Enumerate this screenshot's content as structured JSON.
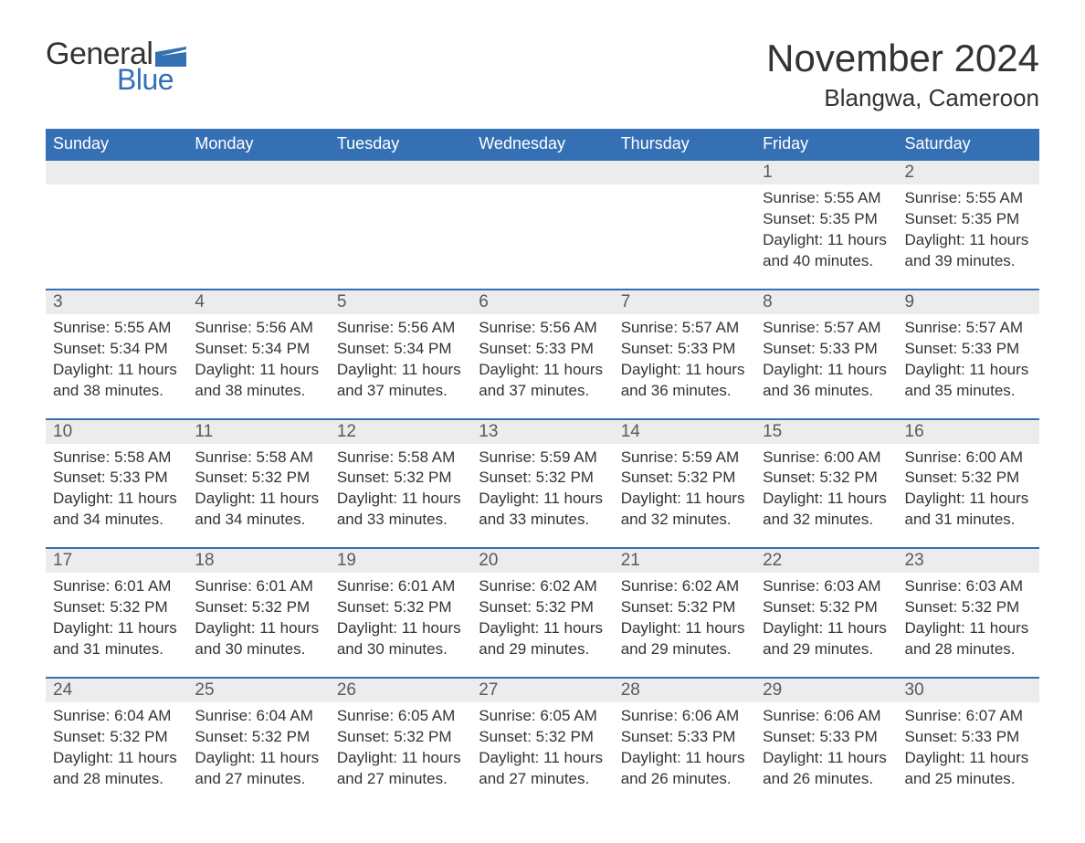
{
  "brand": {
    "word1": "General",
    "word2": "Blue",
    "accent_color": "#3570b4"
  },
  "title": "November 2024",
  "location": "Blangwa, Cameroon",
  "colors": {
    "header_bg": "#3570b4",
    "header_text": "#ffffff",
    "daynum_bg": "#ececec",
    "border": "#3570b4",
    "text": "#333333",
    "background": "#ffffff"
  },
  "day_headers": [
    "Sunday",
    "Monday",
    "Tuesday",
    "Wednesday",
    "Thursday",
    "Friday",
    "Saturday"
  ],
  "weeks": [
    [
      null,
      null,
      null,
      null,
      null,
      {
        "n": "1",
        "sr": "Sunrise: 5:55 AM",
        "ss": "Sunset: 5:35 PM",
        "d1": "Daylight: 11 hours",
        "d2": "and 40 minutes."
      },
      {
        "n": "2",
        "sr": "Sunrise: 5:55 AM",
        "ss": "Sunset: 5:35 PM",
        "d1": "Daylight: 11 hours",
        "d2": "and 39 minutes."
      }
    ],
    [
      {
        "n": "3",
        "sr": "Sunrise: 5:55 AM",
        "ss": "Sunset: 5:34 PM",
        "d1": "Daylight: 11 hours",
        "d2": "and 38 minutes."
      },
      {
        "n": "4",
        "sr": "Sunrise: 5:56 AM",
        "ss": "Sunset: 5:34 PM",
        "d1": "Daylight: 11 hours",
        "d2": "and 38 minutes."
      },
      {
        "n": "5",
        "sr": "Sunrise: 5:56 AM",
        "ss": "Sunset: 5:34 PM",
        "d1": "Daylight: 11 hours",
        "d2": "and 37 minutes."
      },
      {
        "n": "6",
        "sr": "Sunrise: 5:56 AM",
        "ss": "Sunset: 5:33 PM",
        "d1": "Daylight: 11 hours",
        "d2": "and 37 minutes."
      },
      {
        "n": "7",
        "sr": "Sunrise: 5:57 AM",
        "ss": "Sunset: 5:33 PM",
        "d1": "Daylight: 11 hours",
        "d2": "and 36 minutes."
      },
      {
        "n": "8",
        "sr": "Sunrise: 5:57 AM",
        "ss": "Sunset: 5:33 PM",
        "d1": "Daylight: 11 hours",
        "d2": "and 36 minutes."
      },
      {
        "n": "9",
        "sr": "Sunrise: 5:57 AM",
        "ss": "Sunset: 5:33 PM",
        "d1": "Daylight: 11 hours",
        "d2": "and 35 minutes."
      }
    ],
    [
      {
        "n": "10",
        "sr": "Sunrise: 5:58 AM",
        "ss": "Sunset: 5:33 PM",
        "d1": "Daylight: 11 hours",
        "d2": "and 34 minutes."
      },
      {
        "n": "11",
        "sr": "Sunrise: 5:58 AM",
        "ss": "Sunset: 5:32 PM",
        "d1": "Daylight: 11 hours",
        "d2": "and 34 minutes."
      },
      {
        "n": "12",
        "sr": "Sunrise: 5:58 AM",
        "ss": "Sunset: 5:32 PM",
        "d1": "Daylight: 11 hours",
        "d2": "and 33 minutes."
      },
      {
        "n": "13",
        "sr": "Sunrise: 5:59 AM",
        "ss": "Sunset: 5:32 PM",
        "d1": "Daylight: 11 hours",
        "d2": "and 33 minutes."
      },
      {
        "n": "14",
        "sr": "Sunrise: 5:59 AM",
        "ss": "Sunset: 5:32 PM",
        "d1": "Daylight: 11 hours",
        "d2": "and 32 minutes."
      },
      {
        "n": "15",
        "sr": "Sunrise: 6:00 AM",
        "ss": "Sunset: 5:32 PM",
        "d1": "Daylight: 11 hours",
        "d2": "and 32 minutes."
      },
      {
        "n": "16",
        "sr": "Sunrise: 6:00 AM",
        "ss": "Sunset: 5:32 PM",
        "d1": "Daylight: 11 hours",
        "d2": "and 31 minutes."
      }
    ],
    [
      {
        "n": "17",
        "sr": "Sunrise: 6:01 AM",
        "ss": "Sunset: 5:32 PM",
        "d1": "Daylight: 11 hours",
        "d2": "and 31 minutes."
      },
      {
        "n": "18",
        "sr": "Sunrise: 6:01 AM",
        "ss": "Sunset: 5:32 PM",
        "d1": "Daylight: 11 hours",
        "d2": "and 30 minutes."
      },
      {
        "n": "19",
        "sr": "Sunrise: 6:01 AM",
        "ss": "Sunset: 5:32 PM",
        "d1": "Daylight: 11 hours",
        "d2": "and 30 minutes."
      },
      {
        "n": "20",
        "sr": "Sunrise: 6:02 AM",
        "ss": "Sunset: 5:32 PM",
        "d1": "Daylight: 11 hours",
        "d2": "and 29 minutes."
      },
      {
        "n": "21",
        "sr": "Sunrise: 6:02 AM",
        "ss": "Sunset: 5:32 PM",
        "d1": "Daylight: 11 hours",
        "d2": "and 29 minutes."
      },
      {
        "n": "22",
        "sr": "Sunrise: 6:03 AM",
        "ss": "Sunset: 5:32 PM",
        "d1": "Daylight: 11 hours",
        "d2": "and 29 minutes."
      },
      {
        "n": "23",
        "sr": "Sunrise: 6:03 AM",
        "ss": "Sunset: 5:32 PM",
        "d1": "Daylight: 11 hours",
        "d2": "and 28 minutes."
      }
    ],
    [
      {
        "n": "24",
        "sr": "Sunrise: 6:04 AM",
        "ss": "Sunset: 5:32 PM",
        "d1": "Daylight: 11 hours",
        "d2": "and 28 minutes."
      },
      {
        "n": "25",
        "sr": "Sunrise: 6:04 AM",
        "ss": "Sunset: 5:32 PM",
        "d1": "Daylight: 11 hours",
        "d2": "and 27 minutes."
      },
      {
        "n": "26",
        "sr": "Sunrise: 6:05 AM",
        "ss": "Sunset: 5:32 PM",
        "d1": "Daylight: 11 hours",
        "d2": "and 27 minutes."
      },
      {
        "n": "27",
        "sr": "Sunrise: 6:05 AM",
        "ss": "Sunset: 5:32 PM",
        "d1": "Daylight: 11 hours",
        "d2": "and 27 minutes."
      },
      {
        "n": "28",
        "sr": "Sunrise: 6:06 AM",
        "ss": "Sunset: 5:33 PM",
        "d1": "Daylight: 11 hours",
        "d2": "and 26 minutes."
      },
      {
        "n": "29",
        "sr": "Sunrise: 6:06 AM",
        "ss": "Sunset: 5:33 PM",
        "d1": "Daylight: 11 hours",
        "d2": "and 26 minutes."
      },
      {
        "n": "30",
        "sr": "Sunrise: 6:07 AM",
        "ss": "Sunset: 5:33 PM",
        "d1": "Daylight: 11 hours",
        "d2": "and 25 minutes."
      }
    ]
  ]
}
